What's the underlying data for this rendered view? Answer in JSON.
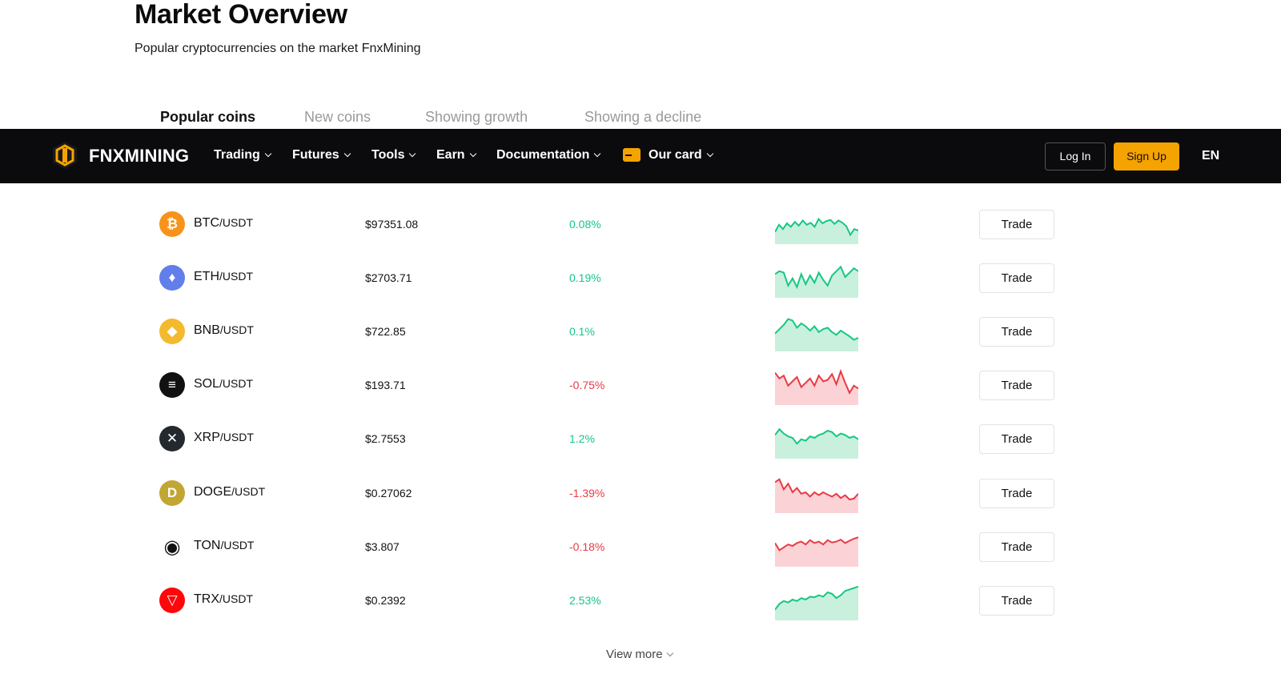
{
  "header": {
    "title": "Market Overview",
    "subtitle": "Popular cryptocurrencies on the market FnxMining"
  },
  "tabs": [
    {
      "label": "Popular coins",
      "active": true
    },
    {
      "label": "New coins",
      "active": false
    },
    {
      "label": "Showing growth",
      "active": false
    },
    {
      "label": "Showing a decline",
      "active": false
    }
  ],
  "navbar": {
    "brand": "FNXMINING",
    "items": [
      {
        "label": "Trading"
      },
      {
        "label": "Futures"
      },
      {
        "label": "Tools"
      },
      {
        "label": "Earn"
      },
      {
        "label": "Documentation"
      },
      {
        "label": "Our card"
      }
    ],
    "login_label": "Log In",
    "signup_label": "Sign Up",
    "language": "EN"
  },
  "colors": {
    "accent": "#f5a300",
    "navbar_bg": "#0b0b0d",
    "up": "#16c784",
    "down": "#ea3943"
  },
  "market": {
    "quote_label": "/USDT",
    "trade_label": "Trade",
    "rows": [
      {
        "symbol": "BTC",
        "icon": "bitcoin-icon",
        "price": "$97351.08",
        "change": "0.08%",
        "trend": "up",
        "spark": [
          0.8,
          0.55,
          0.7,
          0.5,
          0.62,
          0.45,
          0.58,
          0.4,
          0.55,
          0.48,
          0.62,
          0.35,
          0.5,
          0.42,
          0.38,
          0.52,
          0.4,
          0.48,
          0.6,
          0.9,
          0.7,
          0.75
        ]
      },
      {
        "symbol": "ETH",
        "icon": "ethereum-icon",
        "price": "$2703.71",
        "change": "0.19%",
        "trend": "up",
        "spark": [
          0.4,
          0.3,
          0.35,
          0.8,
          0.55,
          0.85,
          0.4,
          0.75,
          0.45,
          0.7,
          0.35,
          0.6,
          0.8,
          0.45,
          0.3,
          0.15,
          0.5,
          0.35,
          0.2,
          0.3
        ]
      },
      {
        "symbol": "BNB",
        "icon": "bnb-icon",
        "price": "$722.85",
        "change": "0.1%",
        "trend": "up",
        "spark": [
          0.6,
          0.45,
          0.3,
          0.1,
          0.15,
          0.4,
          0.25,
          0.35,
          0.5,
          0.35,
          0.55,
          0.45,
          0.4,
          0.55,
          0.65,
          0.5,
          0.6,
          0.7,
          0.82,
          0.75
        ]
      },
      {
        "symbol": "SOL",
        "icon": "solana-icon",
        "price": "$193.71",
        "change": "-0.75%",
        "trend": "down",
        "spark": [
          0.1,
          0.3,
          0.2,
          0.55,
          0.4,
          0.25,
          0.6,
          0.45,
          0.3,
          0.55,
          0.2,
          0.4,
          0.35,
          0.15,
          0.5,
          0.05,
          0.45,
          0.8,
          0.55,
          0.65
        ]
      },
      {
        "symbol": "XRP",
        "icon": "xrp-icon",
        "price": "$2.7553",
        "change": "1.2%",
        "trend": "up",
        "spark": [
          0.4,
          0.2,
          0.35,
          0.45,
          0.5,
          0.7,
          0.55,
          0.6,
          0.45,
          0.5,
          0.4,
          0.35,
          0.25,
          0.3,
          0.45,
          0.35,
          0.4,
          0.5,
          0.45,
          0.55
        ]
      },
      {
        "symbol": "DOGE",
        "icon": "doge-icon",
        "price": "$0.27062",
        "change": "-1.39%",
        "trend": "down",
        "spark": [
          0.15,
          0.05,
          0.4,
          0.2,
          0.5,
          0.35,
          0.55,
          0.5,
          0.65,
          0.5,
          0.6,
          0.5,
          0.58,
          0.65,
          0.55,
          0.7,
          0.6,
          0.75,
          0.72,
          0.55
        ]
      },
      {
        "symbol": "TON",
        "icon": "ton-icon",
        "price": "$3.807",
        "change": "-0.18%",
        "trend": "down",
        "spark": [
          0.4,
          0.65,
          0.55,
          0.45,
          0.5,
          0.4,
          0.35,
          0.45,
          0.3,
          0.4,
          0.35,
          0.45,
          0.3,
          0.38,
          0.35,
          0.28,
          0.4,
          0.32,
          0.25,
          0.2
        ]
      },
      {
        "symbol": "TRX",
        "icon": "tron-icon",
        "price": "$0.2392",
        "change": "2.53%",
        "trend": "up",
        "spark": [
          0.85,
          0.65,
          0.55,
          0.6,
          0.5,
          0.55,
          0.45,
          0.5,
          0.4,
          0.42,
          0.35,
          0.4,
          0.25,
          0.3,
          0.45,
          0.35,
          0.2,
          0.15,
          0.1,
          0.05
        ]
      }
    ]
  },
  "footer": {
    "view_more": "View more"
  }
}
